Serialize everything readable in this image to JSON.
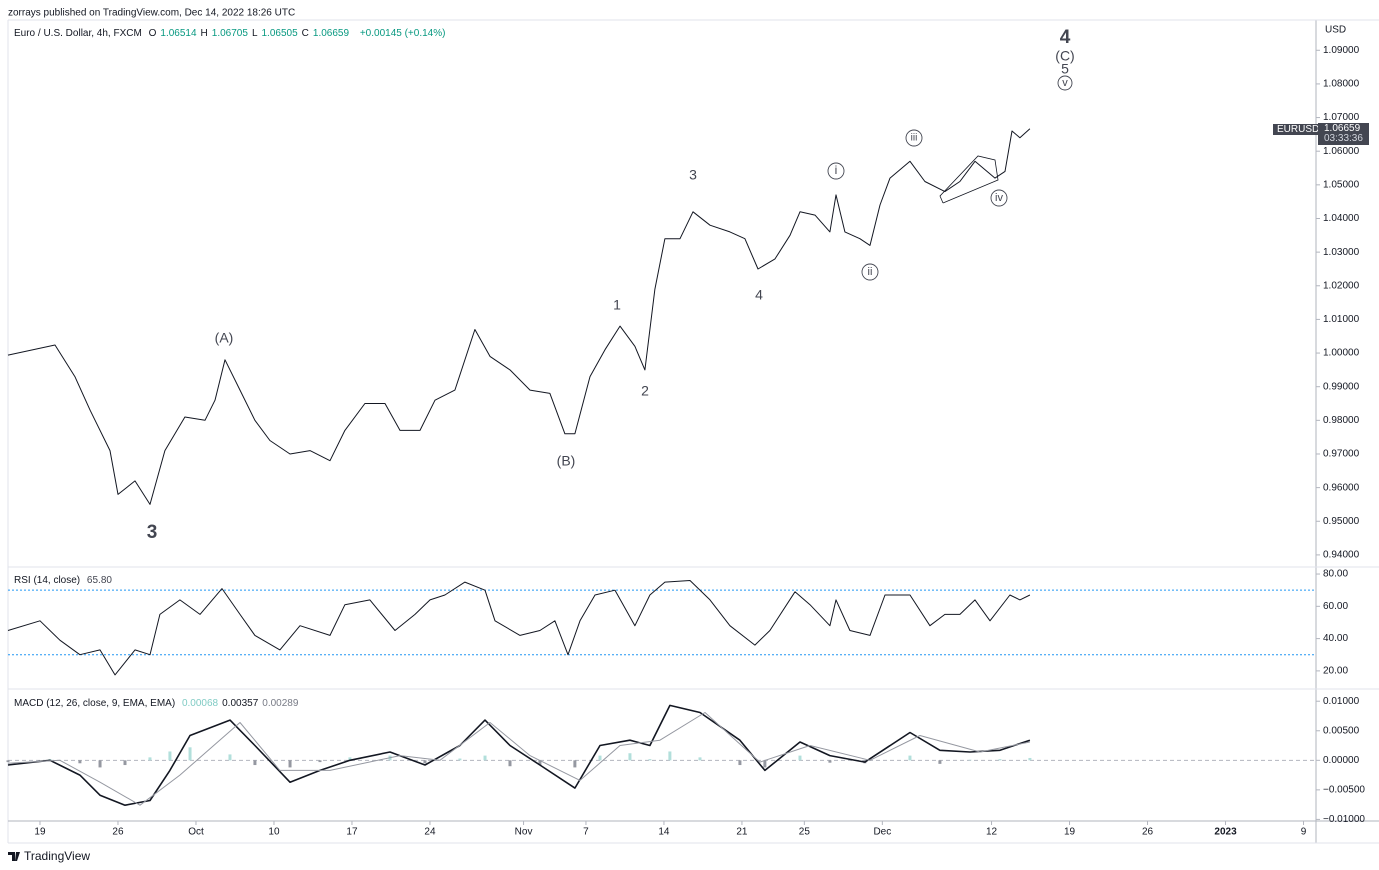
{
  "header": {
    "published": "zorrays published on TradingView.com, Dec 14, 2022 18:26 UTC",
    "currency": "USD",
    "symbol": "EURUSD",
    "last_price": "1.06659",
    "countdown": "03:33:36",
    "brand": "TradingView"
  },
  "chart_data": [
    {
      "type": "line",
      "title": "Euro / U.S. Dollar, 4h, FXCM",
      "ohlc": [
        {
          "key": "O",
          "value": "1.06514"
        },
        {
          "key": "H",
          "value": "1.06705"
        },
        {
          "key": "L",
          "value": "1.06505"
        },
        {
          "key": "C",
          "value": "1.06659"
        }
      ],
      "change": "+0.00145 (+0.14%)",
      "xlim": [
        -2.05,
        81.8
      ],
      "ylim": [
        0.937,
        1.099
      ],
      "yticks": [
        {
          "value": 0.94,
          "label": "0.94000"
        },
        {
          "value": 0.95,
          "label": "0.95000"
        },
        {
          "value": 0.96,
          "label": "0.96000"
        },
        {
          "value": 0.97,
          "label": "0.97000"
        },
        {
          "value": 0.98,
          "label": "0.98000"
        },
        {
          "value": 0.99,
          "label": "0.99000"
        },
        {
          "value": 1.0,
          "label": "1.00000"
        },
        {
          "value": 1.01,
          "label": "1.01000"
        },
        {
          "value": 1.02,
          "label": "1.02000"
        },
        {
          "value": 1.03,
          "label": "1.03000"
        },
        {
          "value": 1.04,
          "label": "1.04000"
        },
        {
          "value": 1.05,
          "label": "1.05000"
        },
        {
          "value": 1.06,
          "label": "1.06000"
        },
        {
          "value": 1.07,
          "label": "1.07000"
        },
        {
          "value": 1.08,
          "label": "1.08000"
        },
        {
          "value": 1.09,
          "label": "1.09000"
        }
      ],
      "series": [
        {
          "color": "#131722",
          "x": [
            -2.05,
            0.96,
            2.24,
            3.21,
            4.49,
            5,
            6.09,
            7.05,
            8.01,
            9.29,
            10.58,
            11.22,
            11.86,
            12.82,
            13.78,
            14.74,
            16.03,
            17.31,
            18.59,
            19.55,
            20.83,
            22.12,
            23.08,
            24.36,
            25.32,
            26.6,
            27.88,
            28.85,
            30.13,
            31.41,
            32.69,
            33.65,
            34.29,
            35.26,
            36.22,
            37.18,
            38.14,
            38.78,
            39.42,
            40.06,
            41.03,
            41.86,
            42.95,
            44.23,
            45.19,
            46.03,
            47.12,
            48.08,
            48.72,
            49.68,
            50.64,
            51.03,
            51.6,
            52.56,
            53.21,
            53.85,
            54.49,
            55.77,
            56.73,
            58.01,
            58.97,
            59.94,
            61.22,
            61.86,
            62.31,
            62.82,
            63.46
          ],
          "values": [
            0.9994,
            1.0024,
            0.993,
            0.983,
            0.971,
            0.958,
            0.962,
            0.955,
            0.971,
            0.981,
            0.98,
            0.986,
            0.998,
            0.989,
            0.98,
            0.974,
            0.97,
            0.971,
            0.968,
            0.977,
            0.985,
            0.985,
            0.977,
            0.977,
            0.986,
            0.989,
            1.007,
            0.999,
            0.995,
            0.989,
            0.988,
            0.976,
            0.976,
            0.993,
            1.001,
            1.008,
            1.002,
            0.995,
            1.019,
            1.034,
            1.034,
            1.042,
            1.038,
            1.036,
            1.034,
            1.025,
            1.028,
            1.035,
            1.042,
            1.041,
            1.036,
            1.047,
            1.036,
            1.034,
            1.032,
            1.044,
            1.052,
            1.057,
            1.051,
            1.048,
            1.051,
            1.057,
            1.052,
            1.054,
            1.066,
            1.064,
            1.0667
          ]
        }
      ],
      "annotations": [
        "3",
        "(A)",
        "(B)",
        "1",
        "2",
        "3",
        "4",
        "i",
        "ii",
        "iii",
        "iv",
        "4",
        "(C)",
        "5",
        "v"
      ]
    },
    {
      "type": "line",
      "title": "RSI (14, close)",
      "current": "65.80",
      "xlim": [
        -2.05,
        81.8
      ],
      "ylim": [
        9.4,
        82.5
      ],
      "bands": [
        70,
        30
      ],
      "band_color": "#2196f3",
      "yticks": [
        {
          "value": 20,
          "label": "20.00"
        },
        {
          "value": 40,
          "label": "40.00"
        },
        {
          "value": 60,
          "label": "60.00"
        },
        {
          "value": 80,
          "label": "80.00"
        }
      ],
      "series": [
        {
          "color": "#131722",
          "x": [
            -2.05,
            0,
            1.28,
            2.56,
            3.85,
            4.81,
            6.09,
            7.05,
            7.69,
            8.97,
            10.26,
            11.67,
            12.82,
            13.78,
            15.38,
            16.67,
            18.59,
            19.55,
            21.15,
            22.76,
            24.04,
            25,
            25.96,
            27.24,
            28.53,
            29.17,
            30.77,
            32.05,
            33.01,
            33.85,
            34.62,
            35.58,
            36.86,
            38.14,
            39.1,
            40.06,
            41.67,
            42.95,
            44.23,
            45.83,
            46.79,
            48.4,
            49.36,
            50.64,
            51.03,
            51.92,
            53.21,
            54.17,
            55.77,
            57.05,
            58.01,
            58.97,
            59.94,
            60.9,
            62.18,
            62.82,
            63.46
          ],
          "values": [
            45,
            51,
            39,
            30,
            33,
            17.5,
            33,
            30,
            55,
            64,
            55,
            71,
            55,
            42,
            33,
            48,
            42,
            61,
            64,
            45,
            55,
            64,
            67,
            75,
            70,
            51,
            42,
            45,
            51,
            30,
            51,
            67,
            70,
            48,
            67,
            75,
            76,
            64,
            48,
            36,
            45,
            69,
            61,
            48,
            64,
            45,
            42,
            67,
            67,
            48,
            55,
            55,
            64,
            51,
            67,
            64,
            67
          ]
        }
      ]
    },
    {
      "type": "line",
      "title": "MACD (12, 26, close, 9, EMA, EMA)",
      "readouts": [
        {
          "value": "0.00068",
          "color": "#80cbc4"
        },
        {
          "value": "0.00357",
          "color": "#131722"
        },
        {
          "value": "0.00289",
          "color": "#787b86"
        }
      ],
      "xlim": [
        -2.05,
        81.8
      ],
      "ylim": [
        -0.0101,
        0.0119
      ],
      "zero_line": 0,
      "yticks": [
        {
          "value": -0.01,
          "label": "−0.01000"
        },
        {
          "value": -0.005,
          "label": "−0.00500"
        },
        {
          "value": 0,
          "label": "0.00000"
        },
        {
          "value": 0.005,
          "label": "0.00500"
        },
        {
          "value": 0.01,
          "label": "0.01000"
        }
      ],
      "xticks": [
        {
          "value": 0,
          "label": "19"
        },
        {
          "value": 5,
          "label": "26"
        },
        {
          "value": 10,
          "label": "Oct"
        },
        {
          "value": 15,
          "label": "10"
        },
        {
          "value": 20,
          "label": "17"
        },
        {
          "value": 25,
          "label": "24"
        },
        {
          "value": 31,
          "label": "Nov"
        },
        {
          "value": 35,
          "label": "7"
        },
        {
          "value": 40,
          "label": "14"
        },
        {
          "value": 45,
          "label": "21"
        },
        {
          "value": 49,
          "label": "25"
        },
        {
          "value": 54,
          "label": "Dec"
        },
        {
          "value": 61,
          "label": "12"
        },
        {
          "value": 66,
          "label": "19"
        },
        {
          "value": 71,
          "label": "26"
        },
        {
          "value": 76,
          "label": "2023"
        },
        {
          "value": 81,
          "label": "9"
        }
      ],
      "series": [
        {
          "style": "histogram",
          "color": "#b2dfdb",
          "negative_color": "#9598a1",
          "x": [
            -2.05,
            0.64,
            2.56,
            3.85,
            5.45,
            7.05,
            8.33,
            9.62,
            12.18,
            13.78,
            16.03,
            17.95,
            19.87,
            22.44,
            24.68,
            26.92,
            28.53,
            30.13,
            32.05,
            34.29,
            35.9,
            37.82,
            39.1,
            40.38,
            42.31,
            44.87,
            46.47,
            48.72,
            50.64,
            52.88,
            55.77,
            57.69,
            59.62,
            61.54,
            63.46
          ],
          "values": [
            -0.0003,
            0.0002,
            -0.0005,
            -0.0012,
            -0.0008,
            0.0005,
            0.0015,
            0.0022,
            0.001,
            -0.0008,
            -0.0012,
            -0.0003,
            0.0005,
            0.0008,
            -0.0005,
            0.0003,
            0.0008,
            -0.001,
            -0.0008,
            -0.0012,
            0.0008,
            0.0012,
            0.0002,
            0.0015,
            0.0005,
            -0.0008,
            -0.0012,
            0.0008,
            -0.0004,
            -0.0005,
            0.0008,
            -0.0006,
            0.0001,
            0.0002,
            0.0004
          ]
        },
        {
          "style": "line",
          "color": "#131722",
          "width": 1.6,
          "x": [
            -2.05,
            0.64,
            2.56,
            3.85,
            5.45,
            7.05,
            8.33,
            9.62,
            12.18,
            13.78,
            16.03,
            17.95,
            19.87,
            22.44,
            24.68,
            26.92,
            28.53,
            30.13,
            32.05,
            34.29,
            35.9,
            37.82,
            39.1,
            40.38,
            42.31,
            44.87,
            46.47,
            48.72,
            50.64,
            52.88,
            55.77,
            57.69,
            59.62,
            61.54,
            63.46
          ],
          "values": [
            -0.0008,
            0,
            -0.0025,
            -0.0059,
            -0.0076,
            -0.0068,
            -0.0017,
            0.0042,
            0.0068,
            0.0025,
            -0.0037,
            -0.0017,
            0,
            0.0014,
            -0.0008,
            0.0025,
            0.0068,
            0.0025,
            -0.0008,
            -0.0047,
            0.0025,
            0.0034,
            0.0025,
            0.0093,
            0.0081,
            0.0034,
            -0.0017,
            0.0031,
            0.0008,
            -0.0003,
            0.0047,
            0.0017,
            0.0014,
            0.0017,
            0.0034
          ]
        },
        {
          "style": "line",
          "color": "#9598a1",
          "width": 1,
          "x": [
            -2.05,
            1.28,
            3.85,
            6.41,
            8.97,
            12.82,
            15.38,
            18.59,
            23.08,
            25.64,
            28.85,
            31.41,
            34.62,
            37.18,
            39.74,
            42.63,
            46.15,
            49.36,
            53.21,
            56.41,
            60.26,
            63.46
          ],
          "values": [
            -0.0005,
            0,
            -0.0037,
            -0.0076,
            -0.0025,
            0.0064,
            -0.0017,
            -0.0017,
            0.0008,
            0,
            0.0064,
            0.0008,
            -0.0034,
            0.0025,
            0.0034,
            0.0081,
            -0.0003,
            0.0025,
            0,
            0.0042,
            0.0014,
            0.0031
          ]
        }
      ]
    }
  ]
}
